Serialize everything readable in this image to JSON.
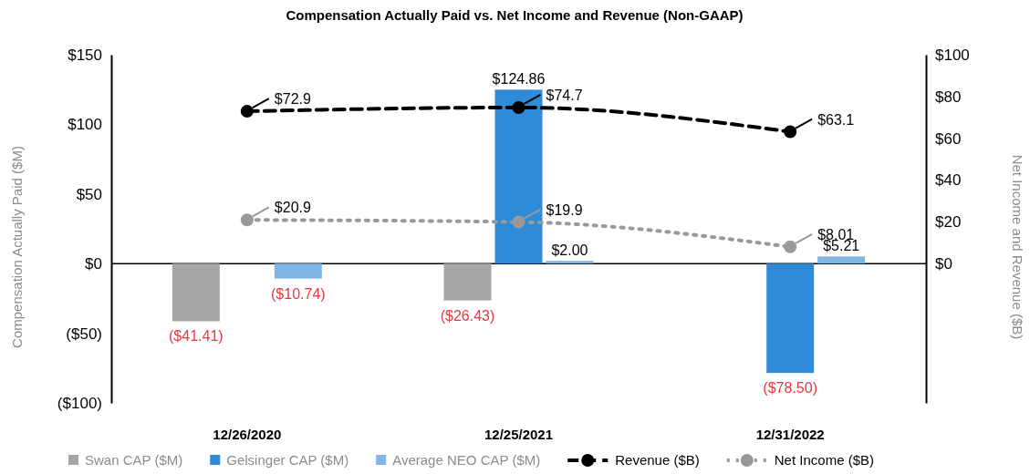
{
  "chart_data": {
    "type": "bar",
    "title": "Compensation Actually Paid vs. Net Income and Revenue (Non-GAAP)",
    "ylabel": "Compensation Actually Paid ($M)",
    "y2label": "Net Income and Revenue ($B)",
    "categories": [
      "12/26/2020",
      "12/25/2021",
      "12/31/2022"
    ],
    "series": [
      {
        "name": "Swan CAP ($M)",
        "color": "#a6a6a8",
        "values": [
          -41.41,
          -26.43,
          null
        ],
        "value_labels": [
          "($41.41)",
          "($26.43)",
          null
        ]
      },
      {
        "name": "Gelsinger CAP ($M)",
        "color": "#2f8ad8",
        "values": [
          null,
          124.86,
          -78.5
        ],
        "value_labels": [
          null,
          "$124.86",
          "($78.50)"
        ]
      },
      {
        "name": "Average NEO CAP ($M)",
        "color": "#7fb6e6",
        "values": [
          -10.74,
          2.0,
          5.21
        ],
        "value_labels": [
          "($10.74)",
          "$2.00",
          "$5.21"
        ]
      },
      {
        "name": "Revenue ($B)",
        "type": "line",
        "axis": "y2",
        "color": "#000000",
        "line_style": "dashed",
        "marker": "circle",
        "values": [
          72.9,
          74.7,
          63.1
        ],
        "value_labels": [
          "$72.9",
          "$74.7",
          "$63.1"
        ]
      },
      {
        "name": "Net Income ($B)",
        "type": "line",
        "axis": "y2",
        "color": "#999999",
        "line_style": "dotted",
        "marker": "circle",
        "values": [
          20.9,
          19.9,
          8.01
        ],
        "value_labels": [
          "$20.9",
          "$19.9",
          "$8.01"
        ]
      }
    ],
    "ylim": [
      -100,
      150
    ],
    "yticks": [
      {
        "value": -100,
        "label": "($100)"
      },
      {
        "value": -50,
        "label": "($50)"
      },
      {
        "value": 0,
        "label": "$0"
      },
      {
        "value": 50,
        "label": "$50"
      },
      {
        "value": 100,
        "label": "$100"
      },
      {
        "value": 150,
        "label": "$150"
      }
    ],
    "y2lim": [
      -66.7,
      100
    ],
    "y2ticks": [
      {
        "value": 0,
        "label": "$0"
      },
      {
        "value": 20,
        "label": "$20"
      },
      {
        "value": 40,
        "label": "$40"
      },
      {
        "value": 60,
        "label": "$60"
      },
      {
        "value": 80,
        "label": "$80"
      },
      {
        "value": 100,
        "label": "$100"
      }
    ],
    "legend": "bottom"
  }
}
